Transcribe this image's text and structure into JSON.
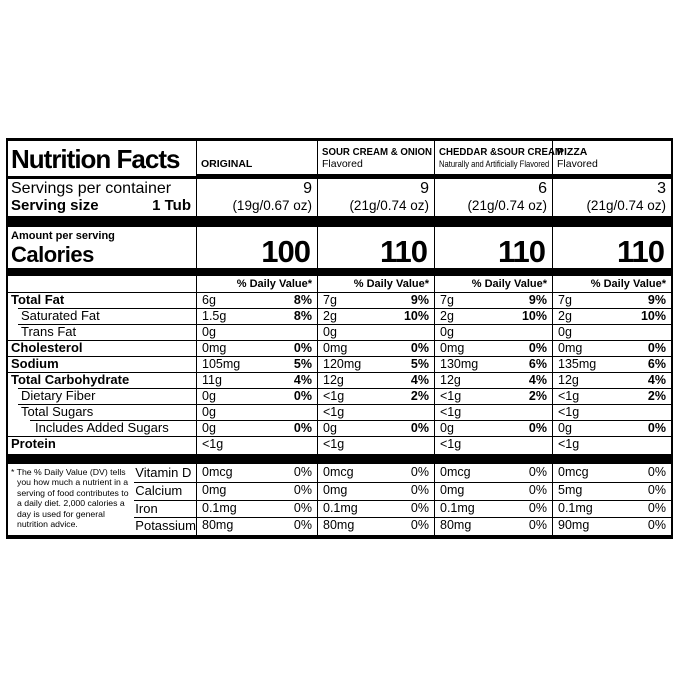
{
  "title": "Nutrition Facts",
  "servings_row_label": "Servings per container",
  "serving_size_label": "Serving size",
  "serving_size_value": "1 Tub",
  "amount_per_serving_label": "Amount per serving",
  "calories_label": "Calories",
  "daily_value_header": "% Daily Value*",
  "footnote": "* The % Daily Value (DV) tells you how much a nutrient in a serving of food contributes to a daily diet. 2,000 calories a day is used for general nutrition advice.",
  "products": [
    {
      "name": "ORIGINAL",
      "subtitle": "",
      "servings_per_container": "9",
      "serving_weight": "(19g/0.67 oz)",
      "calories": "100"
    },
    {
      "name": "SOUR CREAM & ONION",
      "subtitle": "Flavored",
      "servings_per_container": "9",
      "serving_weight": "(21g/0.74 oz)",
      "calories": "110"
    },
    {
      "name": "CHEDDAR &SOUR CREAM",
      "subtitle": "Naturally and Artificially Flavored",
      "servings_per_container": "6",
      "serving_weight": "(21g/0.74 oz)",
      "calories": "110"
    },
    {
      "name": "PIZZA",
      "subtitle": "Flavored",
      "servings_per_container": "3",
      "serving_weight": "(21g/0.74 oz)",
      "calories": "110"
    }
  ],
  "nutrients": [
    {
      "label": "Total Fat",
      "values": [
        {
          "amount": "6g",
          "dv": "8%"
        },
        {
          "amount": "7g",
          "dv": "9%"
        },
        {
          "amount": "7g",
          "dv": "9%"
        },
        {
          "amount": "7g",
          "dv": "9%"
        }
      ]
    },
    {
      "label": "Saturated Fat",
      "values": [
        {
          "amount": "1.5g",
          "dv": "8%"
        },
        {
          "amount": "2g",
          "dv": "10%"
        },
        {
          "amount": "2g",
          "dv": "10%"
        },
        {
          "amount": "2g",
          "dv": "10%"
        }
      ]
    },
    {
      "label": "Trans Fat",
      "values": [
        {
          "amount": "0g",
          "dv": ""
        },
        {
          "amount": "0g",
          "dv": ""
        },
        {
          "amount": "0g",
          "dv": ""
        },
        {
          "amount": "0g",
          "dv": ""
        }
      ]
    },
    {
      "label": "Cholesterol",
      "values": [
        {
          "amount": "0mg",
          "dv": "0%"
        },
        {
          "amount": "0mg",
          "dv": "0%"
        },
        {
          "amount": "0mg",
          "dv": "0%"
        },
        {
          "amount": "0mg",
          "dv": "0%"
        }
      ]
    },
    {
      "label": "Sodium",
      "values": [
        {
          "amount": "105mg",
          "dv": "5%"
        },
        {
          "amount": "120mg",
          "dv": "5%"
        },
        {
          "amount": "130mg",
          "dv": "6%"
        },
        {
          "amount": "135mg",
          "dv": "6%"
        }
      ]
    },
    {
      "label": "Total Carbohydrate",
      "values": [
        {
          "amount": "11g",
          "dv": "4%"
        },
        {
          "amount": "12g",
          "dv": "4%"
        },
        {
          "amount": "12g",
          "dv": "4%"
        },
        {
          "amount": "12g",
          "dv": "4%"
        }
      ]
    },
    {
      "label": "Dietary Fiber",
      "values": [
        {
          "amount": "0g",
          "dv": "0%"
        },
        {
          "amount": "<1g",
          "dv": "2%"
        },
        {
          "amount": "<1g",
          "dv": "2%"
        },
        {
          "amount": "<1g",
          "dv": "2%"
        }
      ]
    },
    {
      "label": "Total Sugars",
      "values": [
        {
          "amount": "0g",
          "dv": ""
        },
        {
          "amount": "<1g",
          "dv": ""
        },
        {
          "amount": "<1g",
          "dv": ""
        },
        {
          "amount": "<1g",
          "dv": ""
        }
      ]
    },
    {
      "label": "Includes Added Sugars",
      "values": [
        {
          "amount": "0g",
          "dv": "0%"
        },
        {
          "amount": "0g",
          "dv": "0%"
        },
        {
          "amount": "0g",
          "dv": "0%"
        },
        {
          "amount": "0g",
          "dv": "0%"
        }
      ]
    },
    {
      "label": "Protein",
      "values": [
        {
          "amount": "<1g",
          "dv": ""
        },
        {
          "amount": "<1g",
          "dv": ""
        },
        {
          "amount": "<1g",
          "dv": ""
        },
        {
          "amount": "<1g",
          "dv": ""
        }
      ]
    }
  ],
  "vitamins": [
    {
      "label": "Vitamin D",
      "values": [
        {
          "amount": "0mcg",
          "dv": "0%"
        },
        {
          "amount": "0mcg",
          "dv": "0%"
        },
        {
          "amount": "0mcg",
          "dv": "0%"
        },
        {
          "amount": "0mcg",
          "dv": "0%"
        }
      ]
    },
    {
      "label": "Calcium",
      "values": [
        {
          "amount": "0mg",
          "dv": "0%"
        },
        {
          "amount": "0mg",
          "dv": "0%"
        },
        {
          "amount": "0mg",
          "dv": "0%"
        },
        {
          "amount": "5mg",
          "dv": "0%"
        }
      ]
    },
    {
      "label": "Iron",
      "values": [
        {
          "amount": "0.1mg",
          "dv": "0%"
        },
        {
          "amount": "0.1mg",
          "dv": "0%"
        },
        {
          "amount": "0.1mg",
          "dv": "0%"
        },
        {
          "amount": "0.1mg",
          "dv": "0%"
        }
      ]
    },
    {
      "label": "Potassium",
      "values": [
        {
          "amount": "80mg",
          "dv": "0%"
        },
        {
          "amount": "80mg",
          "dv": "0%"
        },
        {
          "amount": "80mg",
          "dv": "0%"
        },
        {
          "amount": "90mg",
          "dv": "0%"
        }
      ]
    }
  ],
  "colors": {
    "ink": "#000000",
    "paper": "#ffffff"
  }
}
